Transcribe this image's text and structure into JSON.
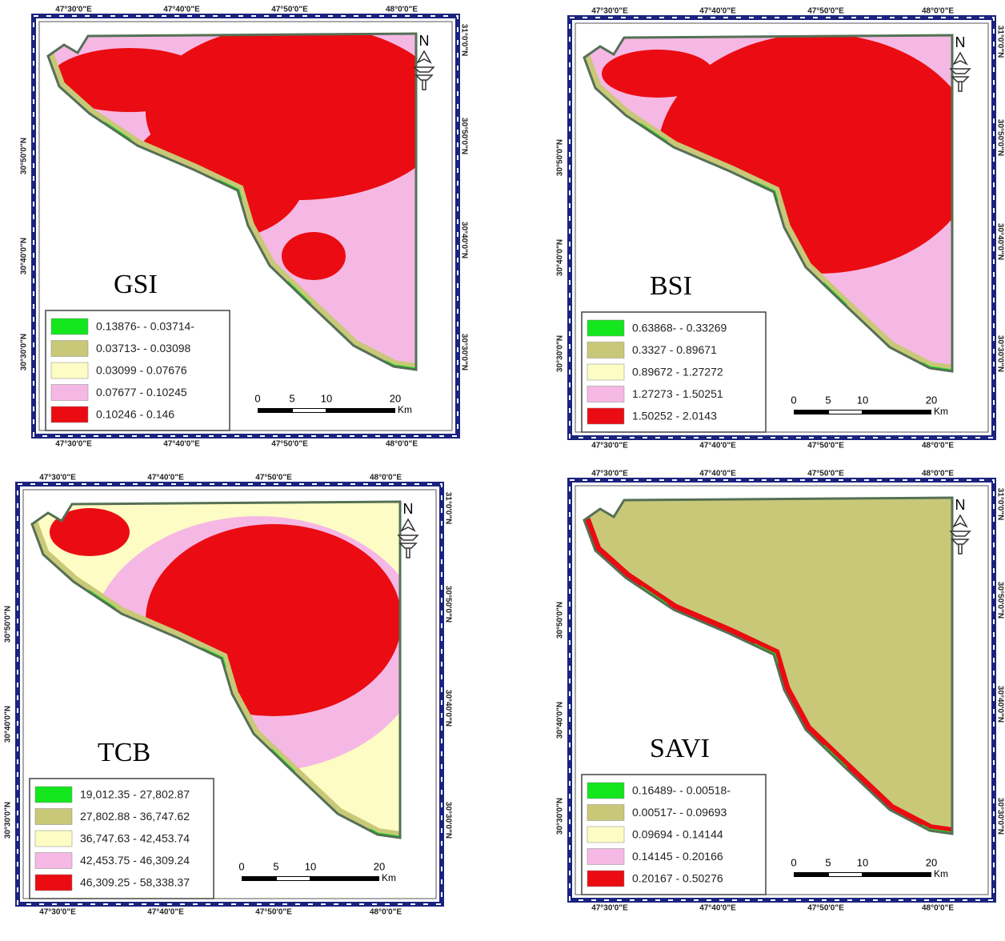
{
  "panels": [
    {
      "title": "GSI",
      "legend": [
        {
          "label": "0.13876- - 0.03714-",
          "color": "#14e61e"
        },
        {
          "label": "0.03713- - 0.03098",
          "color": "#c8c878"
        },
        {
          "label": "0.03099 - 0.07676",
          "color": "#fcfcc4"
        },
        {
          "label": "0.07677 - 0.10245",
          "color": "#f5b8e4"
        },
        {
          "label": "0.10246 - 0.146",
          "color": "#ea0c12"
        }
      ]
    },
    {
      "title": "BSI",
      "legend": [
        {
          "label": "0.63868- - 0.33269",
          "color": "#14e61e"
        },
        {
          "label": "0.3327 - 0.89671",
          "color": "#c8c878"
        },
        {
          "label": "0.89672 - 1.27272",
          "color": "#fcfcc4"
        },
        {
          "label": "1.27273 - 1.50251",
          "color": "#f5b8e4"
        },
        {
          "label": "1.50252 - 2.0143",
          "color": "#ea0c12"
        }
      ]
    },
    {
      "title": "TCB",
      "legend": [
        {
          "label": "19,012.35 - 27,802.87",
          "color": "#14e61e"
        },
        {
          "label": "27,802.88 - 36,747.62",
          "color": "#c8c878"
        },
        {
          "label": "36,747.63 - 42,453.74",
          "color": "#fcfcc4"
        },
        {
          "label": "42,453.75 - 46,309.24",
          "color": "#f5b8e4"
        },
        {
          "label": "46,309.25 - 58,338.37",
          "color": "#ea0c12"
        }
      ]
    },
    {
      "title": "SAVI",
      "legend": [
        {
          "label": "0.16489- - 0.00518-",
          "color": "#14e61e"
        },
        {
          "label": "0.00517- - 0.09693",
          "color": "#c8c878"
        },
        {
          "label": "0.09694 - 0.14144",
          "color": "#fcfcc4"
        },
        {
          "label": "0.14145 - 0.20166",
          "color": "#f5b8e4"
        },
        {
          "label": "0.20167 - 0.50276",
          "color": "#ea0c12"
        }
      ]
    }
  ],
  "longitude_labels": [
    "47°30'0\"E",
    "47°40'0\"E",
    "47°50'0\"E",
    "48°0'0\"E"
  ],
  "latitude_labels_left": [
    "30°50'0\"N",
    "30°40'0\"N",
    "30°30'0\"N"
  ],
  "latitude_labels_right": [
    "31°0'0\"N",
    "30°50'0\"N",
    "30°40'0\"N",
    "30°30'0\"N"
  ],
  "scale_bar_labels": [
    "0",
    "5",
    "10",
    "20"
  ],
  "scale_unit": "Km",
  "north_label": "N"
}
